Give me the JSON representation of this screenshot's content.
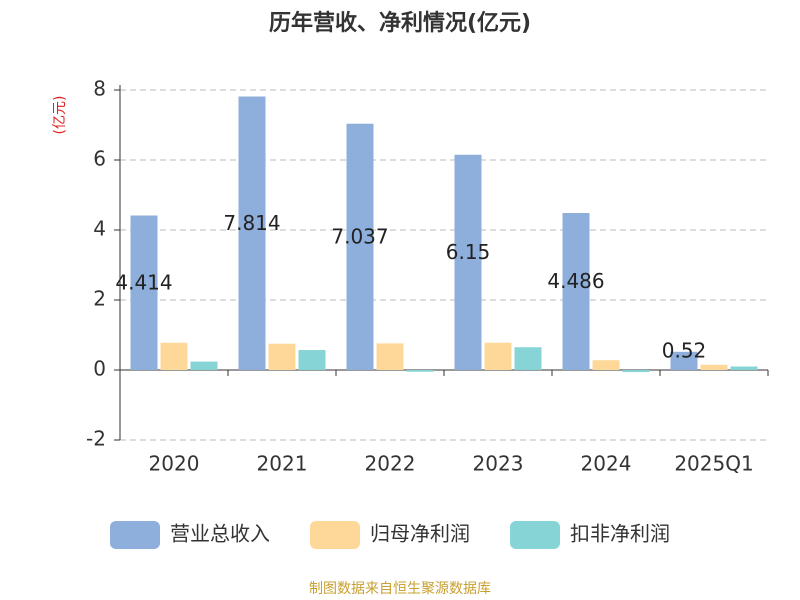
{
  "chart_data": {
    "type": "bar",
    "title": "历年营收、净利情况(亿元)",
    "y_label": "(亿元)",
    "source": "制图数据来自恒生聚源数据库",
    "categories": [
      "2020",
      "2021",
      "2022",
      "2023",
      "2024",
      "2025Q1"
    ],
    "series": [
      {
        "name": "营业总收入",
        "color": "#8eaedb",
        "values": [
          4.414,
          7.814,
          7.037,
          6.15,
          4.486,
          0.52
        ]
      },
      {
        "name": "归母净利润",
        "color": "#fdd898",
        "values": [
          0.78,
          0.75,
          0.76,
          0.78,
          0.28,
          0.15
        ]
      },
      {
        "name": "扣非净利润",
        "color": "#87d4d6",
        "values": [
          0.24,
          0.57,
          -0.05,
          0.65,
          -0.06,
          0.1
        ]
      }
    ],
    "ylim": [
      -2,
      8
    ],
    "yticks": [
      -2,
      0,
      2,
      4,
      6,
      8
    ],
    "grid": true
  }
}
